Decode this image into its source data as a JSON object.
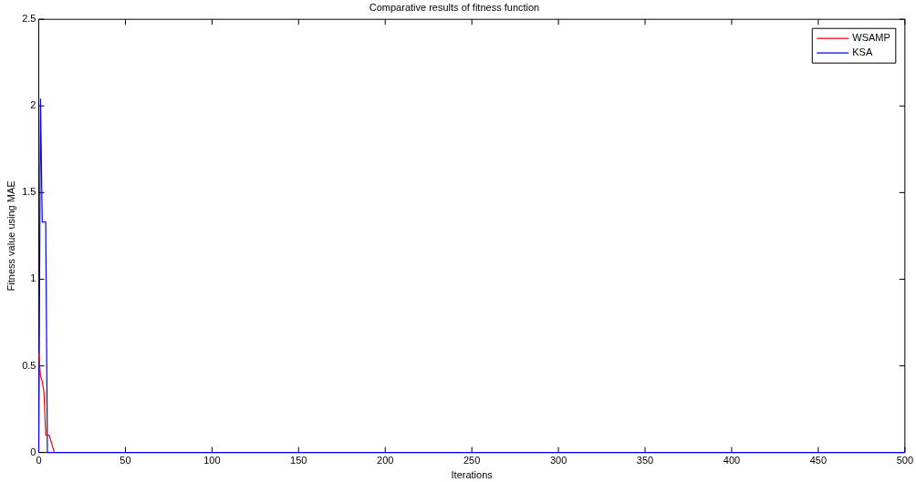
{
  "chart_data": {
    "type": "line",
    "title": "Comparative results of fitness function",
    "xlabel": "Iterations",
    "ylabel": "Fitness value using MAE",
    "xlim": [
      0,
      500
    ],
    "xticks": [
      0,
      50,
      100,
      150,
      200,
      250,
      300,
      350,
      400,
      450,
      500
    ],
    "ylim": [
      0,
      2.5
    ],
    "yticks": [
      0,
      0.5,
      1,
      1.5,
      2,
      2.5
    ],
    "grid": false,
    "legend": "top right",
    "marker": "none",
    "line_style": "solid",
    "series": [
      {
        "name": "WSAMP",
        "color": "#ff0000",
        "x": [
          0,
          1,
          2,
          3,
          4,
          6,
          9
        ],
        "values": [
          0.57,
          0.44,
          0.41,
          0.35,
          0.1,
          0.1,
          0
        ]
      },
      {
        "name": "KSA",
        "color": "#0000ff",
        "x": [
          0,
          1,
          2,
          4,
          5,
          500
        ],
        "values": [
          0,
          2.04,
          1.33,
          1.33,
          0,
          0
        ]
      }
    ]
  }
}
